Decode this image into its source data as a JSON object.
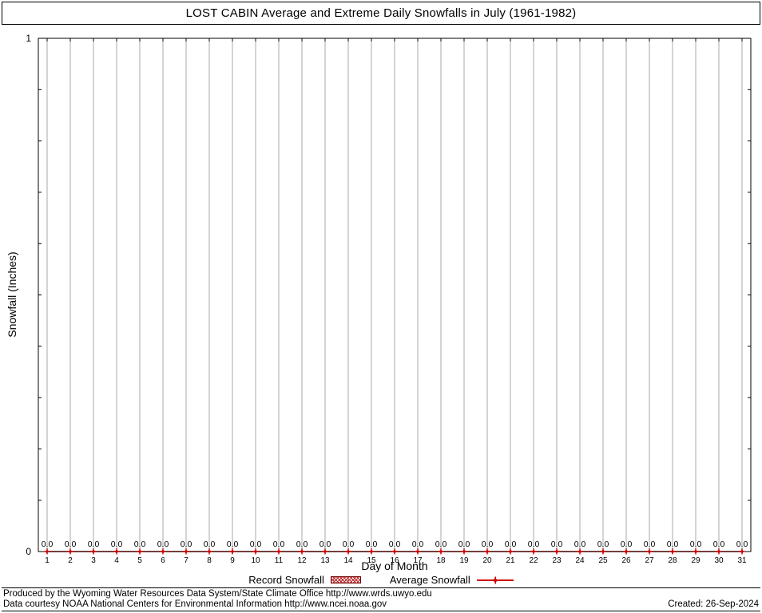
{
  "chart_data": {
    "type": "bar",
    "title": "LOST CABIN Average and Extreme Daily Snowfalls in July (1961-1982)",
    "xlabel": "Day of Month",
    "ylabel": "Snowfall (Inches)",
    "ylim": [
      0,
      1
    ],
    "yticks": [
      0,
      1
    ],
    "grid": "vertical-day-lines",
    "legend_position": "bottom",
    "categories": [
      1,
      2,
      3,
      4,
      5,
      6,
      7,
      8,
      9,
      10,
      11,
      12,
      13,
      14,
      15,
      16,
      17,
      18,
      19,
      20,
      21,
      22,
      23,
      24,
      25,
      26,
      27,
      28,
      29,
      30,
      31
    ],
    "series": [
      {
        "name": "Record Snowfall",
        "style": "hatched-box",
        "color": "#cc0000",
        "values": [
          0,
          0,
          0,
          0,
          0,
          0,
          0,
          0,
          0,
          0,
          0,
          0,
          0,
          0,
          0,
          0,
          0,
          0,
          0,
          0,
          0,
          0,
          0,
          0,
          0,
          0,
          0,
          0,
          0,
          0,
          0
        ]
      },
      {
        "name": "Average Snowfall",
        "style": "line-points",
        "color": "#cc0000",
        "values": [
          0,
          0,
          0,
          0,
          0,
          0,
          0,
          0,
          0,
          0,
          0,
          0,
          0,
          0,
          0,
          0,
          0,
          0,
          0,
          0,
          0,
          0,
          0,
          0,
          0,
          0,
          0,
          0,
          0,
          0,
          0
        ]
      }
    ],
    "point_label_format": "0.0"
  },
  "footer": {
    "line1": "Produced by the Wyoming Water Resources Data System/State Climate Office http://www.wrds.uwyo.edu",
    "line2": "Data courtesy NOAA National Centers for Environmental Information http://www.ncei.noaa.gov",
    "created": "Created: 26-Sep-2024"
  },
  "colors": {
    "red": "#cc0000",
    "grid": "#aaaaaa",
    "frame": "#000000",
    "background": "#ffffff"
  }
}
